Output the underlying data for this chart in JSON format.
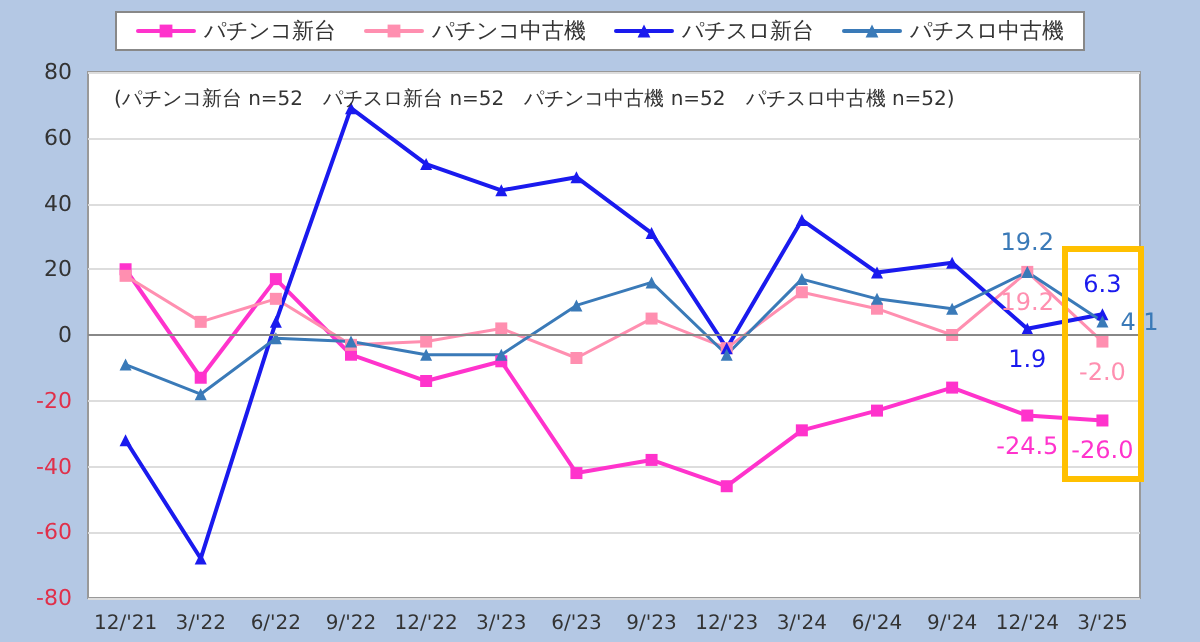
{
  "chart_data": {
    "type": "line",
    "categories": [
      "12/'21",
      "3/'22",
      "6/'22",
      "9/'22",
      "12/'22",
      "3/'23",
      "6/'23",
      "9/'23",
      "12/'23",
      "3/'24",
      "6/'24",
      "9/'24",
      "12/'24",
      "3/'25"
    ],
    "series": [
      {
        "name": "パチンコ新台",
        "color": "#ff33cc",
        "marker": "square",
        "values": [
          20,
          -13,
          17,
          -6,
          -14,
          -8,
          -42,
          -38,
          -46,
          -29,
          -23,
          -16,
          -24.5,
          -26.0
        ],
        "value_labels": [
          null,
          null,
          null,
          null,
          null,
          null,
          null,
          null,
          null,
          null,
          null,
          null,
          "-24.5",
          "-26.0"
        ]
      },
      {
        "name": "パチンコ中古機",
        "color": "#ff8fb0",
        "marker": "square",
        "values": [
          18,
          4,
          11,
          -3,
          -2,
          2,
          -7,
          5,
          -4,
          13,
          8,
          0,
          19.2,
          -2.0
        ],
        "value_labels": [
          null,
          null,
          null,
          null,
          null,
          null,
          null,
          null,
          null,
          null,
          null,
          null,
          "19.2",
          "-2.0"
        ]
      },
      {
        "name": "パチスロ新台",
        "color": "#1a1aee",
        "marker": "triangle",
        "values": [
          -32,
          -68,
          4,
          69,
          52,
          44,
          48,
          31,
          -4,
          35,
          19,
          22,
          1.9,
          6.3
        ],
        "value_labels": [
          null,
          null,
          null,
          null,
          null,
          null,
          null,
          null,
          null,
          null,
          null,
          null,
          "1.9",
          "6.3"
        ]
      },
      {
        "name": "パチスロ中古機",
        "color": "#3a7ab8",
        "marker": "triangle",
        "values": [
          -9,
          -18,
          -1,
          -2,
          -6,
          -6,
          9,
          16,
          -6,
          17,
          11,
          8,
          19.2,
          4.1
        ],
        "value_labels": [
          null,
          null,
          null,
          null,
          null,
          null,
          null,
          null,
          null,
          null,
          null,
          null,
          "19.2",
          "4.1"
        ]
      }
    ],
    "ylim": [
      -80,
      80
    ],
    "yticks": [
      -80,
      -60,
      -40,
      -20,
      0,
      20,
      40,
      60,
      80
    ],
    "annotations": [
      "(パチンコ新台 n=52　パチスロ新台 n=52　パチンコ中古機 n=52　パチスロ中古機 n=52)"
    ],
    "grid": "y",
    "legend": "top",
    "line_style": "solid"
  }
}
